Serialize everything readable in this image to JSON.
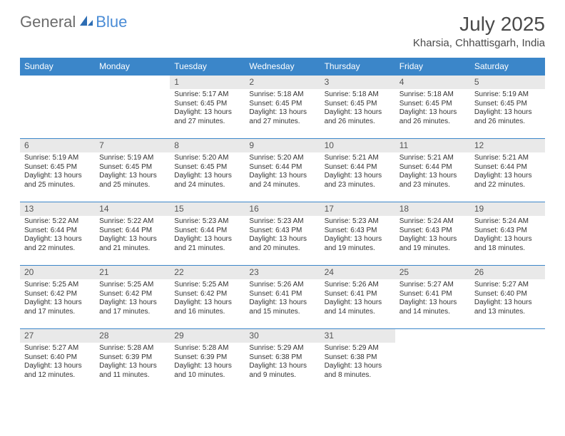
{
  "brand": {
    "general": "General",
    "blue": "Blue"
  },
  "header": {
    "month_year": "July 2025",
    "location": "Kharsia, Chhattisgarh, India"
  },
  "colors": {
    "header_bg": "#3b86c9",
    "day_number_bg": "#e9e9e9",
    "text": "#333333",
    "brand_gray": "#6b6b6b",
    "brand_blue": "#4a8cd6"
  },
  "weekdays": [
    "Sunday",
    "Monday",
    "Tuesday",
    "Wednesday",
    "Thursday",
    "Friday",
    "Saturday"
  ],
  "weeks": [
    [
      null,
      null,
      {
        "n": "1",
        "sunrise": "5:17 AM",
        "sunset": "6:45 PM",
        "daylight": "13 hours and 27 minutes."
      },
      {
        "n": "2",
        "sunrise": "5:18 AM",
        "sunset": "6:45 PM",
        "daylight": "13 hours and 27 minutes."
      },
      {
        "n": "3",
        "sunrise": "5:18 AM",
        "sunset": "6:45 PM",
        "daylight": "13 hours and 26 minutes."
      },
      {
        "n": "4",
        "sunrise": "5:18 AM",
        "sunset": "6:45 PM",
        "daylight": "13 hours and 26 minutes."
      },
      {
        "n": "5",
        "sunrise": "5:19 AM",
        "sunset": "6:45 PM",
        "daylight": "13 hours and 26 minutes."
      }
    ],
    [
      {
        "n": "6",
        "sunrise": "5:19 AM",
        "sunset": "6:45 PM",
        "daylight": "13 hours and 25 minutes."
      },
      {
        "n": "7",
        "sunrise": "5:19 AM",
        "sunset": "6:45 PM",
        "daylight": "13 hours and 25 minutes."
      },
      {
        "n": "8",
        "sunrise": "5:20 AM",
        "sunset": "6:45 PM",
        "daylight": "13 hours and 24 minutes."
      },
      {
        "n": "9",
        "sunrise": "5:20 AM",
        "sunset": "6:44 PM",
        "daylight": "13 hours and 24 minutes."
      },
      {
        "n": "10",
        "sunrise": "5:21 AM",
        "sunset": "6:44 PM",
        "daylight": "13 hours and 23 minutes."
      },
      {
        "n": "11",
        "sunrise": "5:21 AM",
        "sunset": "6:44 PM",
        "daylight": "13 hours and 23 minutes."
      },
      {
        "n": "12",
        "sunrise": "5:21 AM",
        "sunset": "6:44 PM",
        "daylight": "13 hours and 22 minutes."
      }
    ],
    [
      {
        "n": "13",
        "sunrise": "5:22 AM",
        "sunset": "6:44 PM",
        "daylight": "13 hours and 22 minutes."
      },
      {
        "n": "14",
        "sunrise": "5:22 AM",
        "sunset": "6:44 PM",
        "daylight": "13 hours and 21 minutes."
      },
      {
        "n": "15",
        "sunrise": "5:23 AM",
        "sunset": "6:44 PM",
        "daylight": "13 hours and 21 minutes."
      },
      {
        "n": "16",
        "sunrise": "5:23 AM",
        "sunset": "6:43 PM",
        "daylight": "13 hours and 20 minutes."
      },
      {
        "n": "17",
        "sunrise": "5:23 AM",
        "sunset": "6:43 PM",
        "daylight": "13 hours and 19 minutes."
      },
      {
        "n": "18",
        "sunrise": "5:24 AM",
        "sunset": "6:43 PM",
        "daylight": "13 hours and 19 minutes."
      },
      {
        "n": "19",
        "sunrise": "5:24 AM",
        "sunset": "6:43 PM",
        "daylight": "13 hours and 18 minutes."
      }
    ],
    [
      {
        "n": "20",
        "sunrise": "5:25 AM",
        "sunset": "6:42 PM",
        "daylight": "13 hours and 17 minutes."
      },
      {
        "n": "21",
        "sunrise": "5:25 AM",
        "sunset": "6:42 PM",
        "daylight": "13 hours and 17 minutes."
      },
      {
        "n": "22",
        "sunrise": "5:25 AM",
        "sunset": "6:42 PM",
        "daylight": "13 hours and 16 minutes."
      },
      {
        "n": "23",
        "sunrise": "5:26 AM",
        "sunset": "6:41 PM",
        "daylight": "13 hours and 15 minutes."
      },
      {
        "n": "24",
        "sunrise": "5:26 AM",
        "sunset": "6:41 PM",
        "daylight": "13 hours and 14 minutes."
      },
      {
        "n": "25",
        "sunrise": "5:27 AM",
        "sunset": "6:41 PM",
        "daylight": "13 hours and 14 minutes."
      },
      {
        "n": "26",
        "sunrise": "5:27 AM",
        "sunset": "6:40 PM",
        "daylight": "13 hours and 13 minutes."
      }
    ],
    [
      {
        "n": "27",
        "sunrise": "5:27 AM",
        "sunset": "6:40 PM",
        "daylight": "13 hours and 12 minutes."
      },
      {
        "n": "28",
        "sunrise": "5:28 AM",
        "sunset": "6:39 PM",
        "daylight": "13 hours and 11 minutes."
      },
      {
        "n": "29",
        "sunrise": "5:28 AM",
        "sunset": "6:39 PM",
        "daylight": "13 hours and 10 minutes."
      },
      {
        "n": "30",
        "sunrise": "5:29 AM",
        "sunset": "6:38 PM",
        "daylight": "13 hours and 9 minutes."
      },
      {
        "n": "31",
        "sunrise": "5:29 AM",
        "sunset": "6:38 PM",
        "daylight": "13 hours and 8 minutes."
      },
      null,
      null
    ]
  ],
  "labels": {
    "sunrise_prefix": "Sunrise: ",
    "sunset_prefix": "Sunset: ",
    "daylight_prefix": "Daylight: "
  }
}
